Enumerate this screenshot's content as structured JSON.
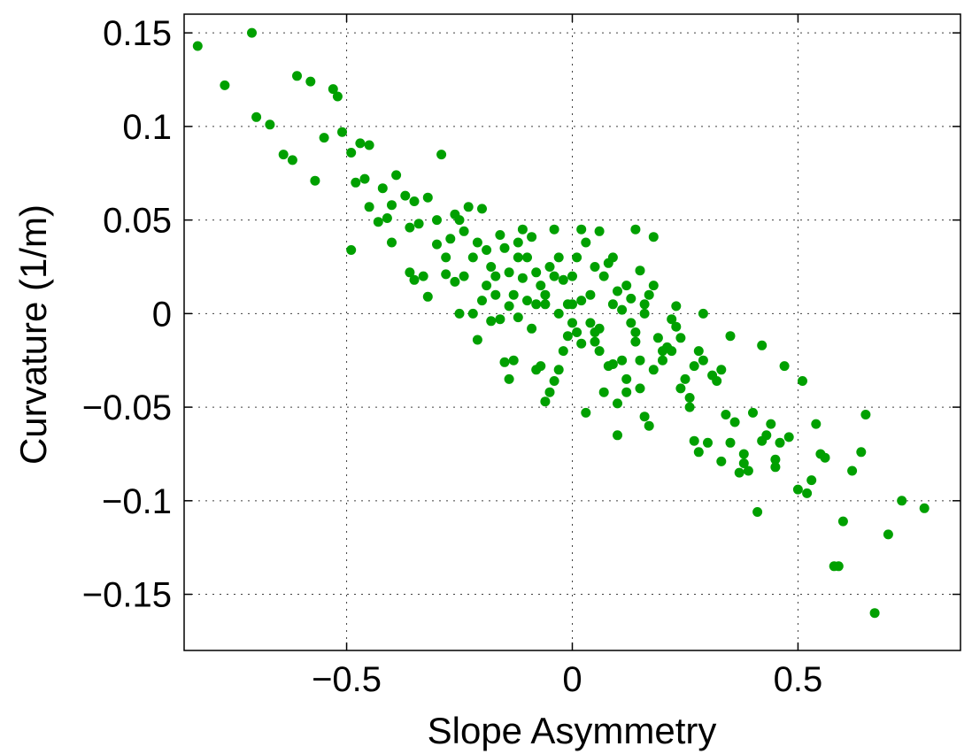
{
  "chart_data": {
    "type": "scatter",
    "xlabel": "Slope Asymmetry",
    "ylabel": "Curvature (1/m)",
    "xlim": [
      -0.86,
      0.86
    ],
    "ylim": [
      -0.18,
      0.16
    ],
    "xticks": [
      -0.5,
      0,
      0.5
    ],
    "xtick_labels": [
      "−0.5",
      "0",
      "0.5"
    ],
    "yticks": [
      0.15,
      0.1,
      0.05,
      0,
      -0.05,
      -0.1,
      -0.15
    ],
    "ytick_labels": [
      "0.15",
      "0.1",
      "0.05",
      "0",
      "−0.05",
      "−0.1",
      "−0.15"
    ],
    "grid": true,
    "color": "#00a000",
    "series": [
      {
        "points": [
          [
            -0.83,
            0.143
          ],
          [
            -0.71,
            0.15
          ],
          [
            -0.77,
            0.122
          ],
          [
            -0.7,
            0.105
          ],
          [
            -0.67,
            0.101
          ],
          [
            -0.64,
            0.085
          ],
          [
            -0.62,
            0.082
          ],
          [
            -0.61,
            0.127
          ],
          [
            -0.58,
            0.124
          ],
          [
            -0.55,
            0.094
          ],
          [
            -0.53,
            0.12
          ],
          [
            -0.52,
            0.116
          ],
          [
            -0.51,
            0.097
          ],
          [
            -0.57,
            0.071
          ],
          [
            -0.49,
            0.086
          ],
          [
            -0.47,
            0.091
          ],
          [
            -0.45,
            0.09
          ],
          [
            -0.48,
            0.07
          ],
          [
            -0.46,
            0.072
          ],
          [
            -0.49,
            0.034
          ],
          [
            -0.45,
            0.057
          ],
          [
            -0.43,
            0.049
          ],
          [
            -0.42,
            0.067
          ],
          [
            -0.4,
            0.058
          ],
          [
            -0.41,
            0.051
          ],
          [
            -0.39,
            0.074
          ],
          [
            -0.37,
            0.063
          ],
          [
            -0.36,
            0.046
          ],
          [
            -0.35,
            0.06
          ],
          [
            -0.36,
            0.022
          ],
          [
            -0.34,
            0.048
          ],
          [
            -0.4,
            0.038
          ],
          [
            -0.3,
            0.05
          ],
          [
            -0.32,
            0.062
          ],
          [
            -0.29,
            0.085
          ],
          [
            -0.3,
            0.037
          ],
          [
            -0.28,
            0.021
          ],
          [
            -0.33,
            0.02
          ],
          [
            -0.32,
            0.009
          ],
          [
            -0.27,
            0.04
          ],
          [
            -0.26,
            0.053
          ],
          [
            -0.25,
            0.05
          ],
          [
            -0.24,
            0.044
          ],
          [
            -0.23,
            0.057
          ],
          [
            -0.22,
            0.03
          ],
          [
            -0.21,
            0.038
          ],
          [
            -0.2,
            0.056
          ],
          [
            -0.19,
            0.034
          ],
          [
            -0.18,
            0.025
          ],
          [
            -0.19,
            0.015
          ],
          [
            -0.17,
            0.02
          ],
          [
            -0.16,
            0.042
          ],
          [
            -0.15,
            0.035
          ],
          [
            -0.14,
            0.022
          ],
          [
            -0.13,
            0.01
          ],
          [
            -0.12,
            0.038
          ],
          [
            -0.11,
            0.045
          ],
          [
            -0.1,
            0.03
          ],
          [
            -0.09,
            0.041
          ],
          [
            -0.08,
            0.022
          ],
          [
            -0.07,
            0.015
          ],
          [
            -0.06,
            0.01
          ],
          [
            -0.05,
            0.025
          ],
          [
            -0.04,
            0.045
          ],
          [
            -0.03,
            0.03
          ],
          [
            -0.02,
            0.018
          ],
          [
            -0.01,
            0.005
          ],
          [
            0.0,
            0.02
          ],
          [
            0.01,
            0.03
          ],
          [
            0.02,
            0.045
          ],
          [
            0.03,
            0.038
          ],
          [
            0.04,
            0.01
          ],
          [
            0.05,
            0.025
          ],
          [
            0.06,
            0.044
          ],
          [
            0.07,
            0.02
          ],
          [
            0.08,
            0.027
          ],
          [
            0.09,
            0.03
          ],
          [
            0.1,
            0.012
          ],
          [
            0.11,
            0.002
          ],
          [
            0.12,
            0.015
          ],
          [
            0.13,
            0.008
          ],
          [
            0.14,
            0.045
          ],
          [
            0.15,
            0.023
          ],
          [
            0.16,
            0.0
          ],
          [
            0.17,
            0.01
          ],
          [
            0.18,
            0.015
          ],
          [
            0.18,
            0.041
          ],
          [
            -0.22,
            0.0
          ],
          [
            -0.2,
            0.007
          ],
          [
            -0.21,
            -0.014
          ],
          [
            -0.18,
            -0.004
          ],
          [
            -0.16,
            -0.003
          ],
          [
            -0.15,
            -0.026
          ],
          [
            -0.14,
            -0.035
          ],
          [
            -0.13,
            -0.025
          ],
          [
            -0.12,
            -0.002
          ],
          [
            -0.1,
            0.007
          ],
          [
            -0.09,
            -0.008
          ],
          [
            -0.08,
            -0.03
          ],
          [
            -0.07,
            -0.028
          ],
          [
            -0.06,
            -0.047
          ],
          [
            -0.05,
            -0.042
          ],
          [
            -0.04,
            -0.036
          ],
          [
            -0.03,
            -0.03
          ],
          [
            -0.02,
            -0.02
          ],
          [
            -0.01,
            -0.012
          ],
          [
            0.0,
            -0.005
          ],
          [
            0.01,
            -0.01
          ],
          [
            0.02,
            -0.016
          ],
          [
            0.03,
            -0.053
          ],
          [
            0.04,
            -0.005
          ],
          [
            0.05,
            -0.015
          ],
          [
            0.06,
            -0.02
          ],
          [
            0.07,
            -0.042
          ],
          [
            0.08,
            -0.028
          ],
          [
            0.09,
            -0.027
          ],
          [
            0.1,
            -0.048
          ],
          [
            0.11,
            -0.025
          ],
          [
            0.12,
            -0.035
          ],
          [
            0.13,
            -0.005
          ],
          [
            0.14,
            -0.01
          ],
          [
            0.15,
            -0.025
          ],
          [
            0.16,
            -0.055
          ],
          [
            0.17,
            -0.06
          ],
          [
            0.1,
            -0.065
          ],
          [
            0.19,
            -0.013
          ],
          [
            0.2,
            -0.02
          ],
          [
            0.21,
            -0.018
          ],
          [
            0.22,
            -0.003
          ],
          [
            0.23,
            -0.007
          ],
          [
            0.24,
            -0.013
          ],
          [
            0.25,
            -0.035
          ],
          [
            0.26,
            -0.05
          ],
          [
            0.27,
            -0.028
          ],
          [
            0.28,
            -0.02
          ],
          [
            0.29,
            -0.025
          ],
          [
            0.3,
            -0.069
          ],
          [
            0.31,
            -0.033
          ],
          [
            0.32,
            -0.036
          ],
          [
            0.33,
            -0.03
          ],
          [
            0.34,
            -0.054
          ],
          [
            0.35,
            -0.012
          ],
          [
            0.36,
            -0.058
          ],
          [
            0.37,
            -0.085
          ],
          [
            0.38,
            -0.075
          ],
          [
            0.39,
            -0.084
          ],
          [
            0.4,
            -0.053
          ],
          [
            0.41,
            -0.106
          ],
          [
            0.42,
            -0.017
          ],
          [
            0.43,
            -0.065
          ],
          [
            0.44,
            -0.059
          ],
          [
            0.45,
            -0.082
          ],
          [
            0.46,
            -0.069
          ],
          [
            0.47,
            -0.028
          ],
          [
            0.48,
            -0.066
          ],
          [
            0.5,
            -0.094
          ],
          [
            0.51,
            -0.036
          ],
          [
            0.52,
            -0.096
          ],
          [
            0.53,
            -0.089
          ],
          [
            0.54,
            -0.059
          ],
          [
            0.55,
            -0.075
          ],
          [
            0.56,
            -0.077
          ],
          [
            0.58,
            -0.135
          ],
          [
            0.59,
            -0.135
          ],
          [
            0.6,
            -0.111
          ],
          [
            0.62,
            -0.084
          ],
          [
            0.64,
            -0.074
          ],
          [
            0.65,
            -0.054
          ],
          [
            0.67,
            -0.16
          ],
          [
            0.7,
            -0.118
          ],
          [
            0.73,
            -0.1
          ],
          [
            0.78,
            -0.104
          ],
          [
            0.27,
            -0.068
          ],
          [
            0.28,
            -0.074
          ],
          [
            0.33,
            -0.079
          ],
          [
            0.35,
            -0.069
          ],
          [
            0.38,
            -0.08
          ],
          [
            0.42,
            -0.068
          ],
          [
            0.45,
            -0.078
          ],
          [
            0.26,
            -0.045
          ],
          [
            0.24,
            -0.04
          ],
          [
            0.22,
            -0.02
          ],
          [
            0.2,
            -0.025
          ],
          [
            0.18,
            -0.03
          ],
          [
            0.15,
            -0.04
          ],
          [
            0.12,
            -0.042
          ],
          [
            0.05,
            -0.01
          ],
          [
            0.0,
            0.005
          ],
          [
            -0.03,
            0.0
          ],
          [
            -0.06,
            0.005
          ],
          [
            -0.11,
            0.019
          ],
          [
            -0.14,
            0.004
          ],
          [
            -0.17,
            0.01
          ],
          [
            -0.24,
            0.02
          ],
          [
            -0.26,
            0.017
          ],
          [
            -0.28,
            0.03
          ],
          [
            -0.35,
            0.018
          ],
          [
            -0.25,
            0.0
          ],
          [
            -0.12,
            0.03
          ],
          [
            -0.08,
            0.005
          ],
          [
            -0.04,
            0.02
          ],
          [
            0.02,
            0.007
          ],
          [
            0.06,
            -0.008
          ],
          [
            0.09,
            0.005
          ],
          [
            0.14,
            -0.015
          ],
          [
            0.16,
            0.005
          ],
          [
            0.23,
            0.004
          ],
          [
            0.29,
            0.0
          ]
        ]
      }
    ]
  }
}
